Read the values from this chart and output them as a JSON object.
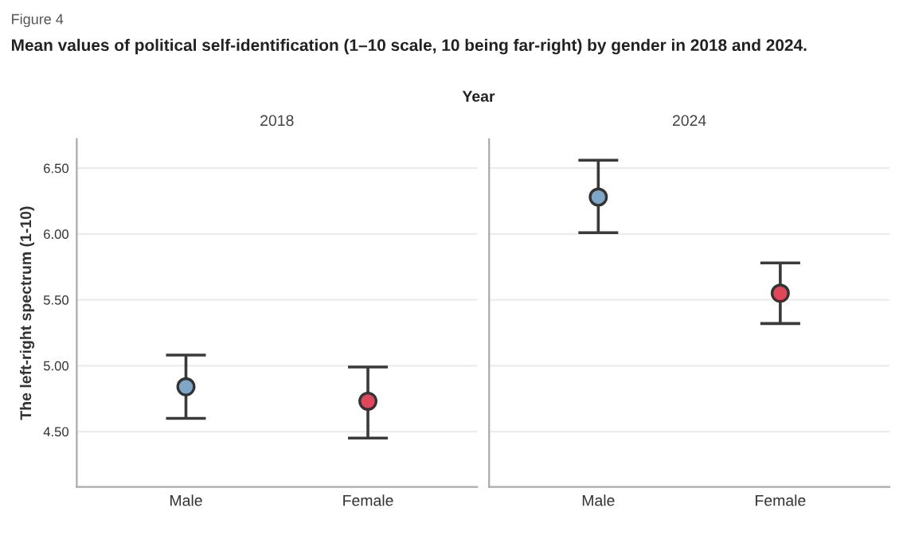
{
  "chart_data": [
    {
      "type": "scatter",
      "title": "2018",
      "ylabel": "The left-right spectrum (1-10)",
      "annotations": [
        "Figure 4",
        "Mean values of political self-identification (1–10 scale, 10 being far-right) by gender in 2018 and 2024.",
        "Year"
      ],
      "categories": [
        "Male",
        "Female"
      ],
      "series": [
        {
          "colors": [
            "#7ea6c9",
            "#e0475a"
          ],
          "values": [
            4.84,
            4.73
          ],
          "errors": [
            [
              4.6,
              5.08
            ],
            [
              4.45,
              4.99
            ]
          ]
        }
      ],
      "ylim": [
        4.08,
        6.72
      ],
      "yticks": [
        {
          "value": 4.5,
          "label": "4.50"
        },
        {
          "value": 5.0,
          "label": "5.00"
        },
        {
          "value": 5.5,
          "label": "5.50"
        },
        {
          "value": 6.0,
          "label": "6.00"
        },
        {
          "value": 6.5,
          "label": "6.50"
        }
      ],
      "grid": "y",
      "marker": "circle"
    },
    {
      "type": "scatter",
      "title": "2024",
      "categories": [
        "Male",
        "Female"
      ],
      "series": [
        {
          "colors": [
            "#7ea6c9",
            "#e0475a"
          ],
          "values": [
            6.28,
            5.55
          ],
          "errors": [
            [
              6.01,
              6.56
            ],
            [
              5.32,
              5.78
            ]
          ]
        }
      ],
      "ylim": [
        4.08,
        6.72
      ],
      "grid": "y",
      "marker": "circle",
      "tick_labels": "x"
    }
  ]
}
